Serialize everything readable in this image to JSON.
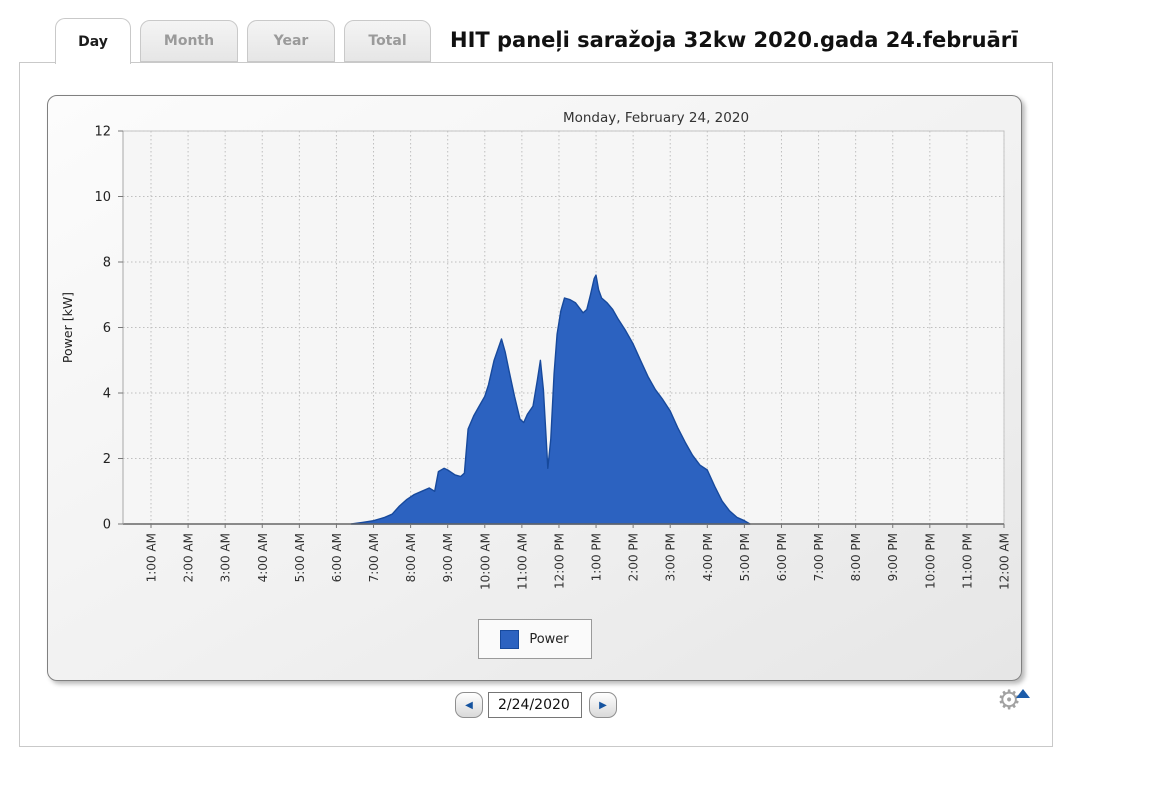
{
  "tabs": [
    {
      "label": "Day",
      "active": true
    },
    {
      "label": "Month",
      "active": false
    },
    {
      "label": "Year",
      "active": false
    },
    {
      "label": "Total",
      "active": false
    }
  ],
  "page_title": "HIT paneļi saražoja 32kw 2020.gada 24.februārī",
  "chart_data": {
    "type": "area",
    "title": "Monday, February 24, 2020",
    "ylabel": "Power [kW]",
    "ylim": [
      0,
      12
    ],
    "y_ticks": [
      0,
      2,
      4,
      6,
      8,
      10,
      12
    ],
    "x_ticks": [
      "1:00 AM",
      "2:00 AM",
      "3:00 AM",
      "4:00 AM",
      "5:00 AM",
      "6:00 AM",
      "7:00 AM",
      "8:00 AM",
      "9:00 AM",
      "10:00 AM",
      "11:00 AM",
      "12:00 PM",
      "1:00 PM",
      "2:00 PM",
      "3:00 PM",
      "4:00 PM",
      "5:00 PM",
      "6:00 PM",
      "7:00 PM",
      "8:00 PM",
      "9:00 PM",
      "10:00 PM",
      "11:00 PM",
      "12:00 AM"
    ],
    "x_range_hours": [
      0,
      24
    ],
    "grid": true,
    "legend_position": "bottom",
    "series": [
      {
        "name": "Power",
        "units": "kW",
        "points_hour_kw": [
          [
            6.4,
            0
          ],
          [
            6.7,
            0.05
          ],
          [
            7.0,
            0.1
          ],
          [
            7.3,
            0.2
          ],
          [
            7.5,
            0.3
          ],
          [
            7.7,
            0.55
          ],
          [
            7.9,
            0.75
          ],
          [
            8.1,
            0.9
          ],
          [
            8.3,
            1.0
          ],
          [
            8.5,
            1.1
          ],
          [
            8.65,
            1.0
          ],
          [
            8.75,
            1.6
          ],
          [
            8.9,
            1.7
          ],
          [
            9.0,
            1.65
          ],
          [
            9.2,
            1.5
          ],
          [
            9.35,
            1.45
          ],
          [
            9.45,
            1.55
          ],
          [
            9.55,
            2.9
          ],
          [
            9.7,
            3.3
          ],
          [
            9.85,
            3.6
          ],
          [
            10.0,
            3.9
          ],
          [
            10.1,
            4.25
          ],
          [
            10.25,
            5.0
          ],
          [
            10.45,
            5.65
          ],
          [
            10.55,
            5.25
          ],
          [
            10.65,
            4.7
          ],
          [
            10.8,
            3.9
          ],
          [
            10.95,
            3.2
          ],
          [
            11.05,
            3.1
          ],
          [
            11.15,
            3.35
          ],
          [
            11.3,
            3.6
          ],
          [
            11.42,
            4.4
          ],
          [
            11.5,
            5.0
          ],
          [
            11.58,
            4.1
          ],
          [
            11.65,
            2.7
          ],
          [
            11.7,
            1.7
          ],
          [
            11.78,
            2.6
          ],
          [
            11.87,
            4.6
          ],
          [
            11.95,
            5.8
          ],
          [
            12.05,
            6.5
          ],
          [
            12.15,
            6.9
          ],
          [
            12.3,
            6.85
          ],
          [
            12.45,
            6.75
          ],
          [
            12.55,
            6.6
          ],
          [
            12.65,
            6.45
          ],
          [
            12.75,
            6.55
          ],
          [
            12.85,
            7.0
          ],
          [
            12.95,
            7.5
          ],
          [
            13.0,
            7.6
          ],
          [
            13.07,
            7.15
          ],
          [
            13.15,
            6.9
          ],
          [
            13.3,
            6.75
          ],
          [
            13.45,
            6.55
          ],
          [
            13.6,
            6.25
          ],
          [
            13.8,
            5.9
          ],
          [
            14.0,
            5.5
          ],
          [
            14.2,
            5.0
          ],
          [
            14.4,
            4.5
          ],
          [
            14.6,
            4.1
          ],
          [
            14.8,
            3.8
          ],
          [
            15.0,
            3.45
          ],
          [
            15.2,
            2.95
          ],
          [
            15.4,
            2.5
          ],
          [
            15.6,
            2.1
          ],
          [
            15.8,
            1.8
          ],
          [
            16.0,
            1.65
          ],
          [
            16.2,
            1.15
          ],
          [
            16.4,
            0.7
          ],
          [
            16.6,
            0.4
          ],
          [
            16.8,
            0.2
          ],
          [
            17.0,
            0.1
          ],
          [
            17.15,
            0
          ]
        ]
      }
    ]
  },
  "footer": {
    "date_value": "2/24/2020",
    "prev_icon": "◀",
    "next_icon": "▶",
    "gear_icon": "⚙"
  },
  "colors": {
    "area_fill": "#2c62c0",
    "area_stroke": "#17499c",
    "accent_blue": "#1c5caa",
    "grid": "#bfbfbf",
    "axis": "#666666"
  }
}
